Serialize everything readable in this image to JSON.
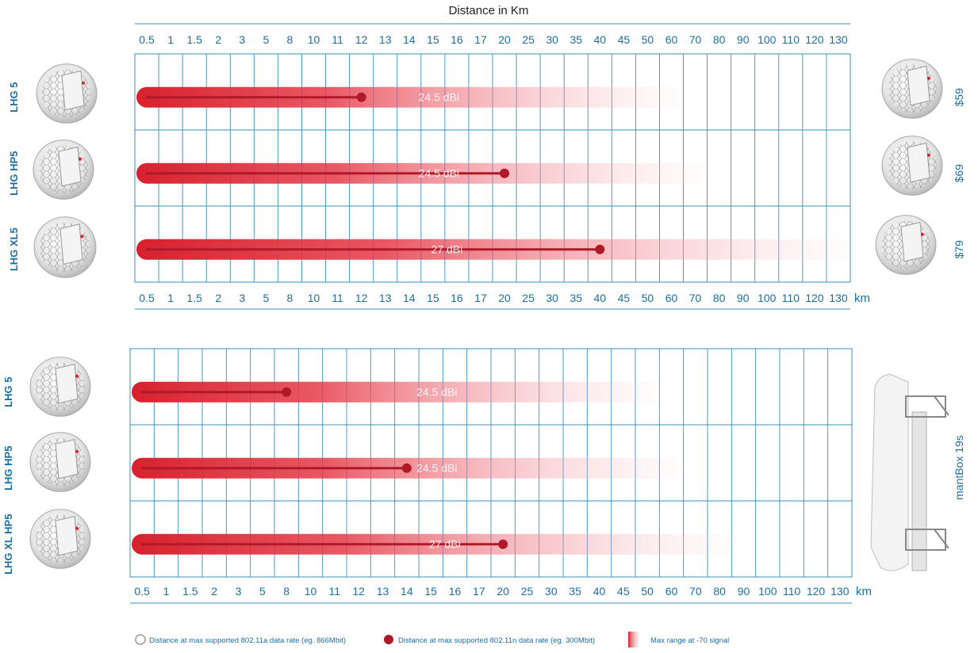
{
  "chart_data": [
    {
      "type": "bar",
      "title": "Distance in Km",
      "x_ticks": [
        "0.5",
        "1",
        "1.5",
        "2",
        "3",
        "5",
        "8",
        "10",
        "11",
        "12",
        "13",
        "14",
        "15",
        "16",
        "17",
        "20",
        "25",
        "30",
        "35",
        "40",
        "45",
        "50",
        "60",
        "70",
        "80",
        "90",
        "100",
        "110",
        "120",
        "130"
      ],
      "x_unit": "km",
      "series": [
        {
          "device": "LHG 5",
          "gain": "24.5 dBi",
          "ac_rate_km": 12,
          "max_range_km": 60,
          "price": "$59"
        },
        {
          "device": "LHG HP5",
          "gain": "24.5 dBi",
          "ac_rate_km": 20,
          "max_range_km": 70,
          "price": "$69"
        },
        {
          "device": "LHG XL5",
          "gain": "27 dBi",
          "ac_rate_km": 40,
          "max_range_km": 130,
          "price": "$79"
        }
      ]
    },
    {
      "type": "bar",
      "x_ticks": [
        "0.5",
        "1",
        "1.5",
        "2",
        "3",
        "5",
        "8",
        "10",
        "11",
        "12",
        "13",
        "14",
        "15",
        "16",
        "17",
        "20",
        "25",
        "30",
        "35",
        "40",
        "45",
        "50",
        "60",
        "70",
        "80",
        "90",
        "100",
        "110",
        "120",
        "130"
      ],
      "x_unit": "km",
      "base_station": "mantBox 19s",
      "series": [
        {
          "device": "LHG 5",
          "gain": "24.5 dBi",
          "ac_rate_km": 8,
          "max_range_km": 50
        },
        {
          "device": "LHG HP5",
          "gain": "24.5 dBi",
          "ac_rate_km": 14,
          "max_range_km": 60
        },
        {
          "device": "LHG XL HP5",
          "gain": "27 dBi",
          "ac_rate_km": 20,
          "max_range_km": 80
        }
      ]
    }
  ],
  "legend": {
    "ac_label": "Distance at max supported 802.11a data rate (eg. 866Mbit)",
    "n_label": "Distance at max supported 802.11n data rate (eg. 300Mbit)",
    "range_label": "Max range at -70 signal"
  },
  "colors": {
    "accent": "#1c6fa6",
    "grid": "#3a8fc4",
    "bar": "#d8202e",
    "dot": "#b01a28"
  }
}
